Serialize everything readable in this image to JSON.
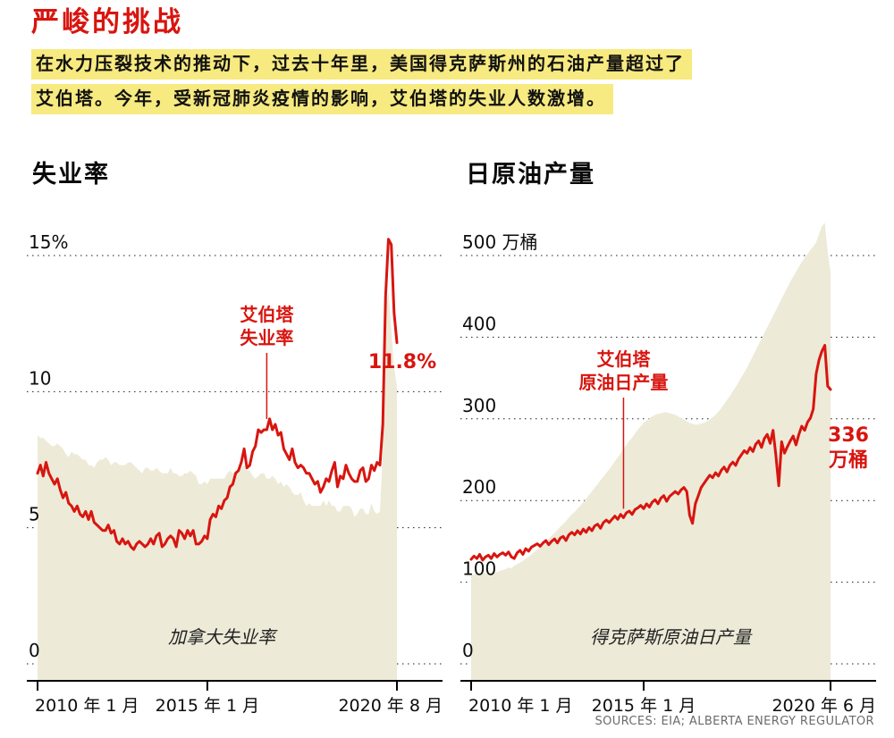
{
  "header": {
    "title": "严峻的挑战",
    "subtitle_line1": "在水力压裂技术的推动下，过去十年里，美国得克萨斯州的石油产量超过了",
    "subtitle_line2": "艾伯塔。今年，受新冠肺炎疫情的影响，艾伯塔的失业人数激增。"
  },
  "source_note": "SOURCES: EIA; ALBERTA ENERGY REGULATOR",
  "colors": {
    "accent_red": "#d8150f",
    "area_beige": "#edead8",
    "highlight_yellow": "#f7ea80"
  },
  "chart_data": [
    {
      "type": "line",
      "title": "失业率",
      "unit": "%",
      "x_range": [
        "2010-01",
        "2020-08"
      ],
      "x_tick_labels": [
        "2010 年 1 月",
        "2015 年 1 月",
        "2020 年 8 月"
      ],
      "x_tick_months": [
        0,
        60,
        127
      ],
      "y_ticks": [
        0,
        5,
        10,
        15
      ],
      "y_tick_labels": [
        "0",
        "5",
        "10",
        "15%"
      ],
      "grid": "dotted-horizontal",
      "area_label": "加拿大失业率",
      "annotations": [
        {
          "id": "callout",
          "kind": "callout",
          "lines": [
            "艾伯塔",
            "失业率"
          ],
          "month": 81
        },
        {
          "id": "value",
          "kind": "value",
          "lines": [
            "11.8%"
          ]
        }
      ],
      "series": [
        {
          "name": "加拿大失业率",
          "type": "area",
          "values": [
            8.4,
            8.3,
            8.3,
            8.2,
            8.1,
            8.0,
            8.0,
            8.1,
            8.0,
            7.9,
            7.7,
            7.6,
            7.8,
            7.7,
            7.7,
            7.6,
            7.5,
            7.5,
            7.3,
            7.3,
            7.2,
            7.4,
            7.5,
            7.5,
            7.6,
            7.5,
            7.3,
            7.4,
            7.4,
            7.3,
            7.3,
            7.3,
            7.4,
            7.4,
            7.3,
            7.2,
            7.1,
            7.0,
            7.2,
            7.2,
            7.1,
            7.1,
            7.2,
            7.1,
            7.0,
            7.0,
            7.0,
            7.2,
            7.0,
            7.0,
            6.9,
            6.9,
            7.0,
            7.0,
            7.1,
            7.0,
            6.9,
            6.6,
            6.6,
            6.7,
            6.6,
            6.8,
            6.8,
            6.8,
            6.8,
            6.8,
            6.8,
            7.0,
            7.1,
            7.0,
            7.1,
            7.1,
            7.2,
            7.3,
            7.1,
            7.1,
            6.9,
            6.8,
            6.9,
            7.0,
            7.0,
            6.8,
            6.8,
            6.9,
            6.8,
            6.6,
            6.7,
            6.5,
            6.6,
            6.5,
            6.3,
            6.2,
            6.2,
            6.3,
            6.0,
            5.8,
            5.9,
            5.8,
            5.8,
            5.8,
            5.8,
            6.0,
            5.8,
            6.0,
            5.8,
            5.8,
            5.6,
            5.6,
            5.8,
            5.8,
            5.8,
            5.7,
            5.4,
            5.5,
            5.7,
            5.7,
            5.5,
            5.5,
            5.9,
            5.6,
            5.5,
            5.6,
            7.8,
            13.0,
            13.7,
            12.3,
            10.9,
            10.2
          ]
        },
        {
          "name": "艾伯塔失业率",
          "type": "line",
          "values": [
            7.0,
            7.3,
            6.9,
            7.4,
            7.0,
            6.8,
            6.6,
            6.8,
            6.4,
            6.1,
            6.3,
            5.9,
            5.8,
            5.6,
            5.8,
            5.5,
            5.4,
            5.6,
            5.3,
            5.6,
            5.2,
            5.1,
            5.0,
            4.9,
            4.9,
            5.1,
            4.8,
            4.9,
            4.5,
            4.4,
            4.6,
            4.4,
            4.5,
            4.3,
            4.2,
            4.4,
            4.5,
            4.4,
            4.3,
            4.4,
            4.6,
            4.4,
            4.7,
            4.8,
            4.3,
            4.4,
            4.6,
            4.7,
            4.6,
            4.3,
            4.9,
            4.8,
            4.6,
            4.9,
            4.7,
            4.9,
            4.4,
            4.4,
            4.5,
            4.7,
            4.6,
            5.3,
            5.5,
            5.4,
            5.8,
            5.7,
            6.0,
            6.1,
            6.5,
            6.6,
            7.0,
            7.1,
            7.4,
            7.9,
            7.2,
            7.3,
            7.8,
            8.0,
            8.6,
            8.5,
            8.6,
            8.6,
            9.0,
            8.6,
            8.8,
            8.4,
            8.5,
            7.9,
            7.7,
            7.5,
            7.9,
            7.4,
            7.2,
            7.3,
            7.2,
            7.0,
            7.0,
            6.8,
            6.6,
            6.7,
            6.3,
            6.5,
            6.8,
            6.7,
            7.1,
            7.4,
            6.5,
            6.9,
            6.8,
            7.3,
            7.0,
            6.8,
            6.7,
            6.7,
            7.1,
            7.2,
            6.7,
            6.8,
            7.3,
            7.1,
            7.4,
            7.3,
            8.8,
            13.5,
            15.6,
            15.4,
            12.9,
            11.8
          ]
        }
      ]
    },
    {
      "type": "line",
      "title": "日原油产量",
      "unit": "万桶",
      "x_range": [
        "2010-01",
        "2020-06"
      ],
      "x_tick_labels": [
        "2010 年 1 月",
        "2015 年 1 月",
        "2020 年 6 月"
      ],
      "x_tick_months": [
        0,
        60,
        125
      ],
      "y_ticks": [
        0,
        100,
        200,
        300,
        400,
        500
      ],
      "y_tick_labels": [
        "0",
        "100",
        "200",
        "300",
        "400",
        "500 万桶"
      ],
      "grid": "dotted-horizontal",
      "area_label": "得克萨斯原油日产量",
      "annotations": [
        {
          "id": "callout",
          "kind": "callout",
          "lines": [
            "艾伯塔",
            "原油日产量"
          ],
          "month": 53
        },
        {
          "id": "value",
          "kind": "value",
          "lines": [
            "336",
            "万桶"
          ]
        }
      ],
      "series": [
        {
          "name": "得克萨斯原油日产量",
          "type": "area",
          "values": [
            110,
            109,
            111,
            110,
            112,
            111,
            110,
            112,
            113,
            112,
            114,
            115,
            116,
            118,
            117,
            120,
            122,
            124,
            126,
            129,
            131,
            134,
            137,
            140,
            143,
            146,
            150,
            153,
            157,
            160,
            164,
            168,
            171,
            175,
            179,
            183,
            186,
            190,
            194,
            198,
            202,
            207,
            211,
            216,
            220,
            225,
            229,
            234,
            238,
            243,
            248,
            253,
            258,
            263,
            268,
            273,
            277,
            282,
            287,
            291,
            295,
            298,
            301,
            303,
            305,
            306,
            307,
            308,
            308,
            307,
            306,
            305,
            303,
            301,
            299,
            297,
            295,
            294,
            293,
            293,
            294,
            295,
            297,
            299,
            302,
            305,
            309,
            313,
            318,
            323,
            328,
            334,
            339,
            345,
            351,
            357,
            363,
            370,
            377,
            384,
            391,
            398,
            405,
            412,
            419,
            426,
            433,
            440,
            447,
            454,
            461,
            468,
            474,
            480,
            486,
            492,
            497,
            502,
            507,
            511,
            516,
            526,
            536,
            540,
            505,
            480
          ]
        },
        {
          "name": "艾伯塔原油日产量",
          "type": "line",
          "values": [
            128,
            132,
            129,
            134,
            127,
            131,
            133,
            129,
            135,
            131,
            134,
            136,
            133,
            137,
            131,
            129,
            136,
            139,
            134,
            141,
            138,
            143,
            145,
            147,
            144,
            148,
            151,
            146,
            150,
            153,
            148,
            154,
            156,
            151,
            158,
            161,
            158,
            163,
            159,
            165,
            161,
            167,
            163,
            169,
            171,
            166,
            173,
            176,
            173,
            177,
            181,
            177,
            183,
            179,
            185,
            187,
            183,
            189,
            191,
            194,
            190,
            196,
            192,
            198,
            201,
            196,
            203,
            206,
            199,
            205,
            208,
            211,
            208,
            213,
            216,
            211,
            182,
            172,
            196,
            206,
            216,
            221,
            226,
            231,
            228,
            234,
            230,
            237,
            241,
            235,
            243,
            247,
            243,
            251,
            256,
            261,
            258,
            265,
            260,
            269,
            273,
            265,
            276,
            281,
            270,
            286,
            255,
            218,
            272,
            258,
            266,
            273,
            279,
            268,
            281,
            291,
            286,
            296,
            301,
            312,
            355,
            372,
            383,
            390,
            340,
            336
          ]
        }
      ]
    }
  ]
}
